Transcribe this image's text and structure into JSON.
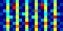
{
  "chart_data": {
    "type": "heatmap",
    "tick_labels": false,
    "cells": [
      [
        1,
        2,
        5,
        1,
        2,
        6,
        1,
        1,
        5,
        2,
        1,
        6,
        2,
        1,
        5,
        1,
        2,
        6,
        1,
        2
      ],
      [
        1,
        3,
        6,
        2,
        1,
        7,
        2,
        1,
        6,
        1,
        2,
        7,
        1,
        2,
        6,
        2,
        1,
        7,
        2,
        1
      ],
      [
        2,
        1,
        7,
        1,
        3,
        6,
        1,
        2,
        8,
        1,
        1,
        6,
        2,
        1,
        7,
        1,
        3,
        6,
        1,
        2
      ],
      [
        1,
        2,
        6,
        2,
        1,
        5,
        3,
        1,
        6,
        2,
        1,
        5,
        1,
        3,
        6,
        2,
        1,
        5,
        2,
        1
      ],
      [
        1,
        1,
        5,
        4,
        2,
        6,
        1,
        1,
        5,
        1,
        4,
        6,
        2,
        1,
        5,
        1,
        2,
        8,
        1,
        1
      ],
      [
        2,
        1,
        4,
        1,
        1,
        5,
        2,
        4,
        6,
        2,
        1,
        5,
        1,
        1,
        4,
        2,
        1,
        6,
        3,
        2
      ],
      [
        1,
        3,
        5,
        2,
        1,
        6,
        1,
        1,
        5,
        1,
        2,
        7,
        2,
        1,
        5,
        1,
        3,
        6,
        1,
        1
      ],
      [
        1,
        1,
        6,
        1,
        8,
        5,
        2,
        1,
        6,
        2,
        1,
        5,
        1,
        9,
        6,
        1,
        1,
        5,
        2,
        1
      ],
      [
        2,
        1,
        5,
        2,
        9,
        6,
        1,
        2,
        5,
        1,
        1,
        6,
        2,
        8,
        5,
        2,
        1,
        6,
        1,
        2
      ],
      [
        1,
        2,
        4,
        1,
        2,
        5,
        1,
        1,
        4,
        2,
        1,
        5,
        1,
        2,
        4,
        1,
        2,
        5,
        1,
        1
      ]
    ]
  }
}
